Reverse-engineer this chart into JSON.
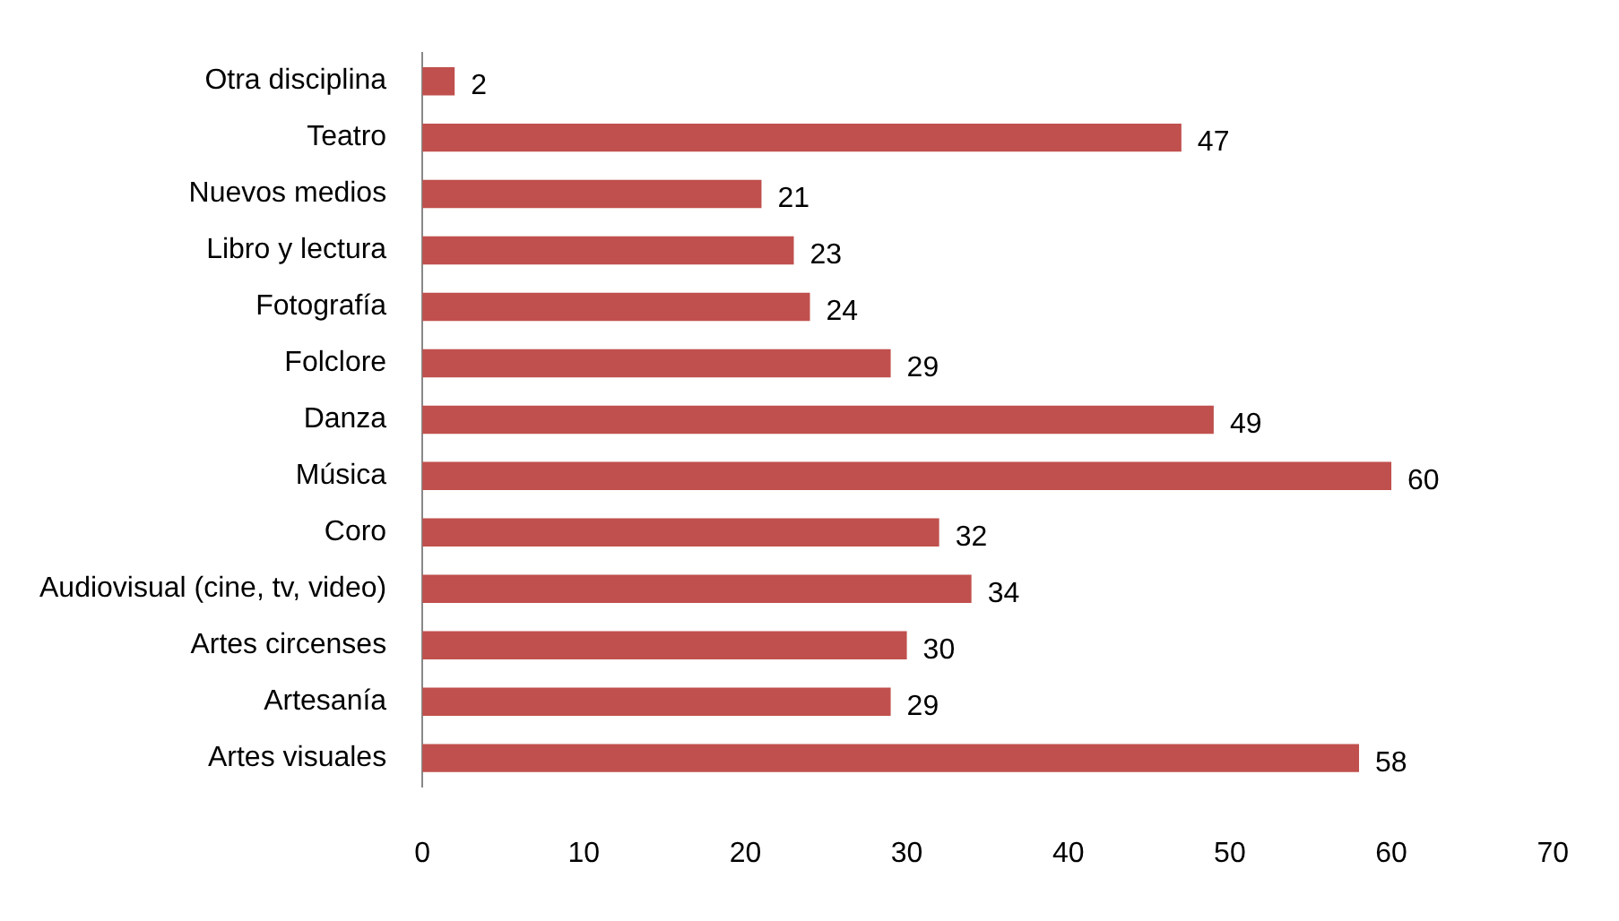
{
  "chart_data": {
    "type": "bar",
    "orientation": "horizontal",
    "categories": [
      "Otra disciplina",
      "Teatro",
      "Nuevos medios",
      "Libro y lectura",
      "Fotografía",
      "Folclore",
      "Danza",
      "Música",
      "Coro",
      "Audiovisual (cine, tv, video)",
      "Artes circenses",
      "Artesanía",
      "Artes visuales"
    ],
    "values": [
      2,
      47,
      21,
      23,
      24,
      29,
      49,
      60,
      32,
      34,
      30,
      29,
      58
    ],
    "color": "#c0504d",
    "xlim": [
      0,
      70
    ],
    "xticks": [
      0,
      10,
      20,
      30,
      40,
      50,
      60,
      70
    ],
    "grid": false,
    "legend": false,
    "data_labels": true
  }
}
